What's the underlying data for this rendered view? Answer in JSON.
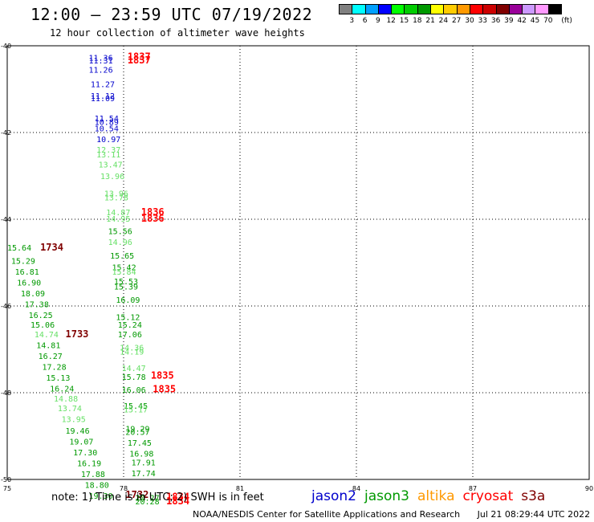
{
  "title": "12:00 – 23:59 UTC 07/19/2022",
  "subtitle": "12 hour collection of altimeter wave heights",
  "legend": {
    "unit": "(ft)",
    "bins": [
      {
        "label": "3",
        "color": "#808080"
      },
      {
        "label": "6",
        "color": "#00ffff"
      },
      {
        "label": "9",
        "color": "#00a0ff"
      },
      {
        "label": "12",
        "color": "#0000ff"
      },
      {
        "label": "15",
        "color": "#00ff00"
      },
      {
        "label": "18",
        "color": "#00cc00"
      },
      {
        "label": "21",
        "color": "#009900"
      },
      {
        "label": "24",
        "color": "#ffff00"
      },
      {
        "label": "27",
        "color": "#ffcc00"
      },
      {
        "label": "30",
        "color": "#ff9900"
      },
      {
        "label": "33",
        "color": "#ff0000"
      },
      {
        "label": "36",
        "color": "#cc0000"
      },
      {
        "label": "39",
        "color": "#800000"
      },
      {
        "label": "42",
        "color": "#990099"
      },
      {
        "label": "45",
        "color": "#cc99ff"
      },
      {
        "label": "70",
        "color": "#ff99ff"
      },
      {
        "label": "",
        "color": "#000000"
      }
    ]
  },
  "axes": {
    "lon_ticks": [
      "75",
      "78",
      "81",
      "84",
      "87",
      "90"
    ],
    "lat_ticks": [
      "-40",
      "-42",
      "-44",
      "-46",
      "-48",
      "-50"
    ]
  },
  "satellite_colors": {
    "jason2": "#0000cc",
    "jason3": "#009900",
    "jason3_light": "#66e066",
    "altika": "#ff9900",
    "cryosat": "#ff0000",
    "s3a": "#800000"
  },
  "observations": [
    {
      "lon": 77.1,
      "lat": -40.27,
      "text": "11.36",
      "sat": "jason2"
    },
    {
      "lon": 77.1,
      "lat": -40.33,
      "text": "11.31",
      "sat": "jason2"
    },
    {
      "lon": 78.1,
      "lat": -40.25,
      "text": "1837",
      "sat": "cryosat"
    },
    {
      "lon": 78.1,
      "lat": -40.33,
      "text": "1837",
      "sat": "cryosat"
    },
    {
      "lon": 77.1,
      "lat": -40.55,
      "text": "11.26",
      "sat": "jason2"
    },
    {
      "lon": 77.15,
      "lat": -40.88,
      "text": "11.27",
      "sat": "jason2"
    },
    {
      "lon": 77.15,
      "lat": -41.15,
      "text": "11.12",
      "sat": "jason2"
    },
    {
      "lon": 77.15,
      "lat": -41.2,
      "text": "11.09",
      "sat": "jason2"
    },
    {
      "lon": 77.25,
      "lat": -41.67,
      "text": "11.54",
      "sat": "jason2"
    },
    {
      "lon": 77.25,
      "lat": -41.75,
      "text": "10.89",
      "sat": "jason2"
    },
    {
      "lon": 77.25,
      "lat": -41.9,
      "text": "10.54",
      "sat": "jason2"
    },
    {
      "lon": 77.3,
      "lat": -42.15,
      "text": "10.97",
      "sat": "jason2"
    },
    {
      "lon": 77.3,
      "lat": -42.39,
      "text": "12.37",
      "sat": "jason3_light"
    },
    {
      "lon": 77.3,
      "lat": -42.5,
      "text": "13.11",
      "sat": "jason3_light"
    },
    {
      "lon": 77.35,
      "lat": -42.73,
      "text": "13.47",
      "sat": "jason3_light"
    },
    {
      "lon": 77.4,
      "lat": -43.0,
      "text": "13.96",
      "sat": "jason3_light"
    },
    {
      "lon": 77.5,
      "lat": -43.4,
      "text": "13.96",
      "sat": "jason3_light"
    },
    {
      "lon": 77.5,
      "lat": -43.49,
      "text": "13.78",
      "sat": "jason3_light"
    },
    {
      "lon": 77.55,
      "lat": -43.83,
      "text": "14.87",
      "sat": "jason3_light"
    },
    {
      "lon": 77.55,
      "lat": -43.98,
      "text": "14.95",
      "sat": "jason3_light"
    },
    {
      "lon": 78.45,
      "lat": -43.83,
      "text": "1836",
      "sat": "cryosat"
    },
    {
      "lon": 78.45,
      "lat": -43.98,
      "text": "1836",
      "sat": "cryosat"
    },
    {
      "lon": 77.6,
      "lat": -44.27,
      "text": "15.56",
      "sat": "jason3"
    },
    {
      "lon": 77.6,
      "lat": -44.52,
      "text": "14.96",
      "sat": "jason3_light"
    },
    {
      "lon": 75.0,
      "lat": -44.65,
      "text": "15.64",
      "sat": "jason3"
    },
    {
      "lon": 75.85,
      "lat": -44.65,
      "text": "1734",
      "sat": "s3a"
    },
    {
      "lon": 75.1,
      "lat": -44.95,
      "text": "15.29",
      "sat": "jason3"
    },
    {
      "lon": 77.65,
      "lat": -44.83,
      "text": "15.65",
      "sat": "jason3"
    },
    {
      "lon": 75.2,
      "lat": -45.2,
      "text": "16.81",
      "sat": "jason3"
    },
    {
      "lon": 77.7,
      "lat": -45.1,
      "text": "15.42",
      "sat": "jason3"
    },
    {
      "lon": 77.7,
      "lat": -45.2,
      "text": "15.84",
      "sat": "jason3_light"
    },
    {
      "lon": 75.25,
      "lat": -45.45,
      "text": "16.90",
      "sat": "jason3"
    },
    {
      "lon": 77.75,
      "lat": -45.43,
      "text": "15.53",
      "sat": "jason3"
    },
    {
      "lon": 77.75,
      "lat": -45.55,
      "text": "15.39",
      "sat": "jason3"
    },
    {
      "lon": 75.35,
      "lat": -45.7,
      "text": "18.09",
      "sat": "jason3"
    },
    {
      "lon": 77.8,
      "lat": -45.85,
      "text": "16.09",
      "sat": "jason3"
    },
    {
      "lon": 75.45,
      "lat": -45.95,
      "text": "17.38",
      "sat": "jason3"
    },
    {
      "lon": 75.55,
      "lat": -46.2,
      "text": "16.25",
      "sat": "jason3"
    },
    {
      "lon": 77.8,
      "lat": -46.25,
      "text": "15.12",
      "sat": "jason3"
    },
    {
      "lon": 75.6,
      "lat": -46.43,
      "text": "15.06",
      "sat": "jason3"
    },
    {
      "lon": 77.85,
      "lat": -46.43,
      "text": "15.24",
      "sat": "jason3"
    },
    {
      "lon": 75.7,
      "lat": -46.65,
      "text": "14.74",
      "sat": "jason3_light"
    },
    {
      "lon": 76.5,
      "lat": -46.65,
      "text": "1733",
      "sat": "s3a"
    },
    {
      "lon": 77.85,
      "lat": -46.65,
      "text": "17.06",
      "sat": "jason3"
    },
    {
      "lon": 75.75,
      "lat": -46.9,
      "text": "14.81",
      "sat": "jason3"
    },
    {
      "lon": 77.9,
      "lat": -46.95,
      "text": "14.36",
      "sat": "jason3_light"
    },
    {
      "lon": 77.9,
      "lat": -47.05,
      "text": "14.19",
      "sat": "jason3_light"
    },
    {
      "lon": 75.8,
      "lat": -47.15,
      "text": "16.27",
      "sat": "jason3"
    },
    {
      "lon": 75.9,
      "lat": -47.4,
      "text": "17.28",
      "sat": "jason3"
    },
    {
      "lon": 77.95,
      "lat": -47.43,
      "text": "14.47",
      "sat": "jason3_light"
    },
    {
      "lon": 76.0,
      "lat": -47.65,
      "text": "15.13",
      "sat": "jason3"
    },
    {
      "lon": 77.95,
      "lat": -47.63,
      "text": "15.78",
      "sat": "jason3"
    },
    {
      "lon": 78.7,
      "lat": -47.6,
      "text": "1835",
      "sat": "cryosat"
    },
    {
      "lon": 76.1,
      "lat": -47.9,
      "text": "16.24",
      "sat": "jason3"
    },
    {
      "lon": 77.95,
      "lat": -47.93,
      "text": "16.06",
      "sat": "jason3"
    },
    {
      "lon": 78.75,
      "lat": -47.92,
      "text": "1835",
      "sat": "cryosat"
    },
    {
      "lon": 76.2,
      "lat": -48.13,
      "text": "14.88",
      "sat": "jason3_light"
    },
    {
      "lon": 78.0,
      "lat": -48.3,
      "text": "15.45",
      "sat": "jason3"
    },
    {
      "lon": 76.3,
      "lat": -48.35,
      "text": "13.74",
      "sat": "jason3_light"
    },
    {
      "lon": 78.0,
      "lat": -48.38,
      "text": "15.17",
      "sat": "jason3_light"
    },
    {
      "lon": 76.4,
      "lat": -48.6,
      "text": "13.95",
      "sat": "jason3_light"
    },
    {
      "lon": 78.05,
      "lat": -48.82,
      "text": "19.29",
      "sat": "jason3"
    },
    {
      "lon": 78.05,
      "lat": -48.9,
      "text": "20.57",
      "sat": "jason3"
    },
    {
      "lon": 76.5,
      "lat": -48.87,
      "text": "19.46",
      "sat": "jason3"
    },
    {
      "lon": 76.6,
      "lat": -49.12,
      "text": "19.07",
      "sat": "jason3"
    },
    {
      "lon": 78.1,
      "lat": -49.15,
      "text": "17.45",
      "sat": "jason3"
    },
    {
      "lon": 76.7,
      "lat": -49.37,
      "text": "17.30",
      "sat": "jason3"
    },
    {
      "lon": 78.15,
      "lat": -49.4,
      "text": "16.98",
      "sat": "jason3"
    },
    {
      "lon": 76.8,
      "lat": -49.62,
      "text": "16.19",
      "sat": "jason3"
    },
    {
      "lon": 78.2,
      "lat": -49.6,
      "text": "17.91",
      "sat": "jason3"
    },
    {
      "lon": 76.9,
      "lat": -49.87,
      "text": "17.88",
      "sat": "jason3"
    },
    {
      "lon": 78.2,
      "lat": -49.85,
      "text": "17.74",
      "sat": "jason3"
    },
    {
      "lon": 77.0,
      "lat": -50.12,
      "text": "18.80",
      "sat": "jason3"
    },
    {
      "lon": 77.1,
      "lat": -50.37,
      "text": "19.30",
      "sat": "jason3"
    },
    {
      "lon": 78.05,
      "lat": -50.35,
      "text": "1732",
      "sat": "s3a"
    },
    {
      "lon": 78.3,
      "lat": -50.42,
      "text": "20.27",
      "sat": "jason3"
    },
    {
      "lon": 78.3,
      "lat": -50.5,
      "text": "20.28",
      "sat": "jason3"
    },
    {
      "lon": 79.1,
      "lat": -50.4,
      "text": "1834",
      "sat": "cryosat"
    },
    {
      "lon": 79.1,
      "lat": -50.5,
      "text": "1834",
      "sat": "cryosat"
    }
  ],
  "note": "note: 1) Time is in UTC; 2) SWH is in feet",
  "satellites": [
    {
      "key": "jason2",
      "label": "jason2"
    },
    {
      "key": "jason3",
      "label": "jason3"
    },
    {
      "key": "altika",
      "label": "altika"
    },
    {
      "key": "cryosat",
      "label": "cryosat"
    },
    {
      "key": "s3a",
      "label": "s3a"
    }
  ],
  "footer": {
    "source": "NOAA/NESDIS Center for Satellite Applications and Research",
    "timestamp": "Jul 21 08:29:44 UTC 2022"
  }
}
